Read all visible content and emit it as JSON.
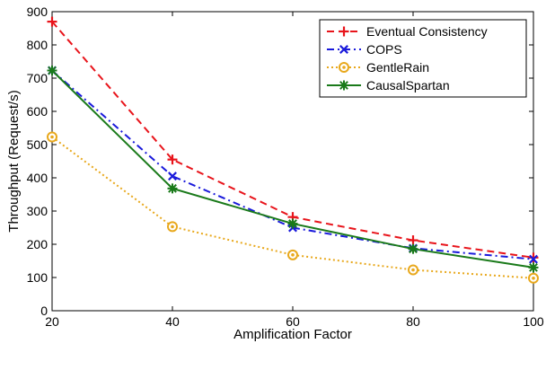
{
  "chart_data": {
    "type": "line",
    "xlabel": "Amplification Factor",
    "ylabel": "Throughput (Request/s)",
    "x": [
      20,
      40,
      60,
      80,
      100
    ],
    "xlim": [
      20,
      100
    ],
    "ylim": [
      0,
      900
    ],
    "xticks": [
      20,
      40,
      60,
      80,
      100
    ],
    "yticks": [
      0,
      100,
      200,
      300,
      400,
      500,
      600,
      700,
      800,
      900
    ],
    "grid": false,
    "legend_position": "top-right",
    "series": [
      {
        "name": "Eventual Consistency",
        "values": [
          870,
          455,
          282,
          212,
          160
        ],
        "color": "#e8141b",
        "dash": "dashed",
        "marker": "plus"
      },
      {
        "name": "COPS",
        "values": [
          723,
          405,
          250,
          188,
          155
        ],
        "color": "#1a1adb",
        "dash": "dashdot",
        "marker": "x"
      },
      {
        "name": "GentleRain",
        "values": [
          523,
          253,
          168,
          123,
          98
        ],
        "color": "#e8a81c",
        "dash": "dotted",
        "marker": "circle"
      },
      {
        "name": "CausalSpartan",
        "values": [
          723,
          368,
          262,
          186,
          130
        ],
        "color": "#1a7a1a",
        "dash": "solid",
        "marker": "star"
      }
    ]
  }
}
